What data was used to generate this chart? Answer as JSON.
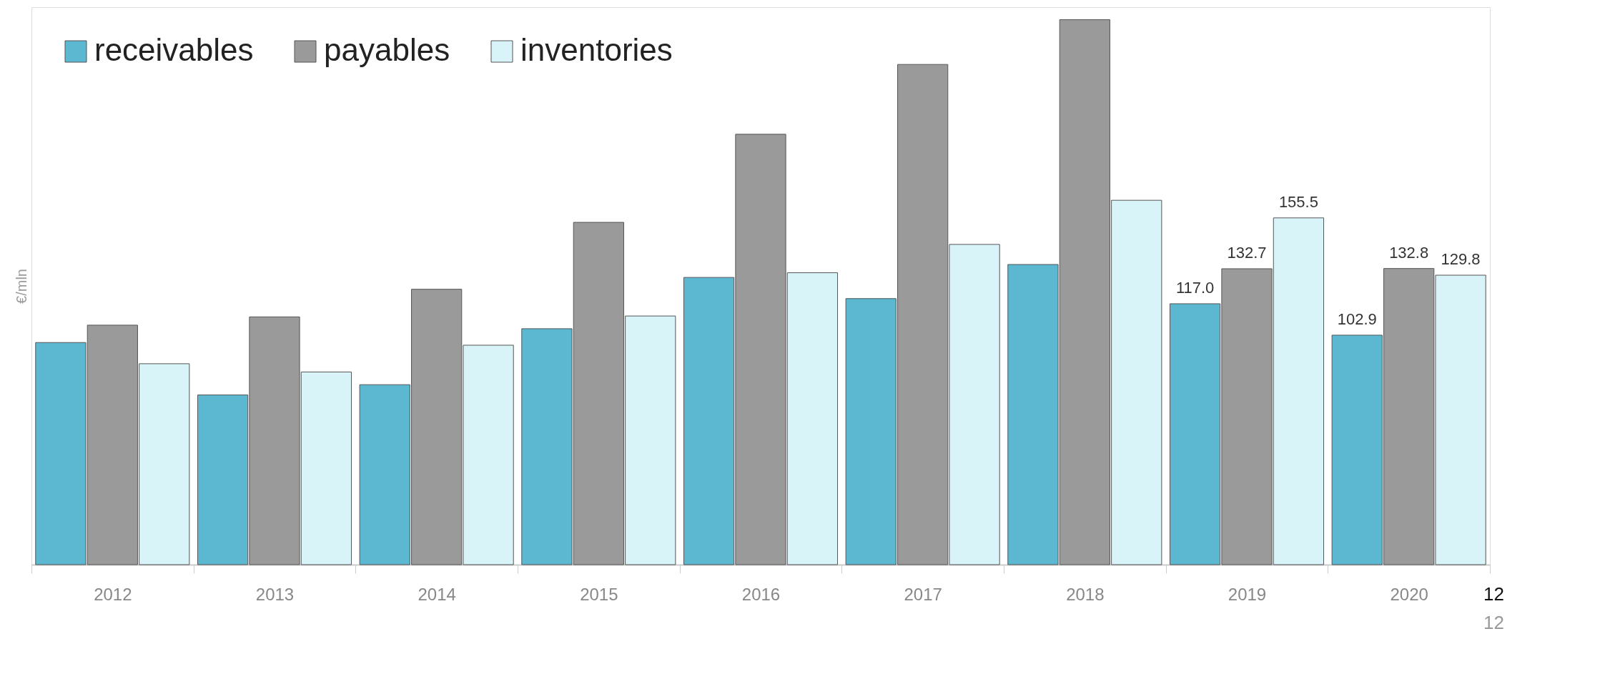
{
  "chart_data": {
    "type": "bar",
    "ylabel": "€/mln",
    "categories": [
      "2012",
      "2013",
      "2014",
      "2015",
      "2016",
      "2017",
      "2018",
      "2019",
      "2020"
    ],
    "series": [
      {
        "name": "receivables",
        "color": "#5bb8d0",
        "values": [
          99.6,
          76.1,
          80.7,
          105.8,
          128.8,
          119.3,
          134.6,
          117.0,
          102.9
        ],
        "value_labels": [
          null,
          null,
          null,
          null,
          null,
          null,
          null,
          "117.0",
          "102.9"
        ]
      },
      {
        "name": "payables",
        "color": "#9a9a9a",
        "values": [
          107.4,
          111.1,
          123.5,
          153.5,
          193.0,
          224.3,
          244.4,
          132.7,
          132.8
        ],
        "value_labels": [
          null,
          null,
          null,
          null,
          null,
          null,
          null,
          "132.7",
          "132.8"
        ]
      },
      {
        "name": "inventories",
        "color": "#d8f4f8",
        "values": [
          90.1,
          86.4,
          98.4,
          111.5,
          130.9,
          143.6,
          163.4,
          155.5,
          129.8
        ],
        "value_labels": [
          null,
          null,
          null,
          null,
          null,
          null,
          null,
          "155.5",
          "129.8"
        ]
      }
    ],
    "ylim": [
      0,
      250
    ],
    "tick_labels": "x",
    "grid": false,
    "legend": "top left",
    "annotations": [
      "12",
      "12"
    ]
  }
}
